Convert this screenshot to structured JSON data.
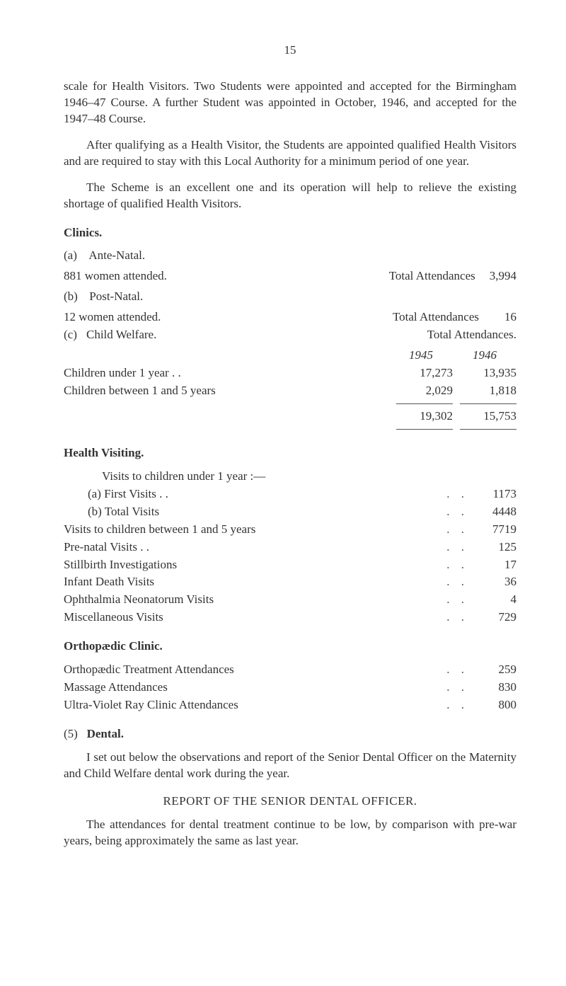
{
  "pageNumber": "15",
  "para1": "scale for Health Visitors. Two Students were appointed and accepted for the Birmingham 1946–47 Course. A further Student was appointed in October, 1946, and accepted for the 1947–48 Course.",
  "para2": "After qualifying as a Health Visitor, the Students are appointed qualified Health Visitors and are required to stay with this Local Authority for a minimum period of one year.",
  "para3": "The Scheme is an excellent one and its operation will help to relieve the existing shortage of qualified Health Visitors.",
  "clinics": {
    "heading": "Clinics.",
    "a": {
      "tag": "(a)",
      "title": "Ante-Natal.",
      "line": "881 women attended.",
      "rightLabel": "Total Attendances",
      "rightVal": "3,994"
    },
    "b": {
      "tag": "(b)",
      "title": "Post-Natal.",
      "line": "12 women attended.",
      "rightLabel": "Total Attendances",
      "rightVal": "16"
    },
    "c": {
      "tag": "(c)",
      "title": "Child Welfare.",
      "rightLabel": "Total Attendances.",
      "year1": "1945",
      "year2": "1946",
      "rows": [
        {
          "label": "Children under 1 year  . .",
          "v1": "17,273",
          "v2": "13,935"
        },
        {
          "label": "Children between 1 and 5 years",
          "v1": "2,029",
          "v2": "1,818"
        }
      ],
      "totals": {
        "v1": "19,302",
        "v2": "15,753"
      }
    }
  },
  "healthVisiting": {
    "heading": "Health Visiting.",
    "introLine": "Visits to children under 1 year :—",
    "rows": [
      {
        "label": "(a)  First Visits . .",
        "val": "1173",
        "sub": true
      },
      {
        "label": "(b)  Total Visits",
        "val": "4448",
        "sub": true
      },
      {
        "label": "Visits to children between 1 and 5 years",
        "val": "7719"
      },
      {
        "label": "Pre-natal Visits  . .",
        "val": "125"
      },
      {
        "label": "Stillbirth Investigations",
        "val": "17"
      },
      {
        "label": "Infant Death Visits",
        "val": "36"
      },
      {
        "label": "Ophthalmia Neonatorum Visits",
        "val": "4"
      },
      {
        "label": "Miscellaneous Visits",
        "val": "729"
      }
    ]
  },
  "ortho": {
    "heading": "Orthopædic Clinic.",
    "rows": [
      {
        "label": "Orthopædic Treatment Attendances",
        "val": "259"
      },
      {
        "label": "Massage Attendances",
        "val": "830"
      },
      {
        "label": "Ultra-Violet Ray Clinic Attendances",
        "val": "800"
      }
    ]
  },
  "dental": {
    "numbered": "(5)",
    "heading": "Dental.",
    "para1": "I set out below the observations and report of the Senior Dental Officer on the Maternity and Child Welfare dental work during the year.",
    "reportHeading": "REPORT OF THE SENIOR DENTAL OFFICER.",
    "para2": "The attendances for dental treatment continue to be low, by comparison with pre-war years, being approximately the same as last year."
  }
}
